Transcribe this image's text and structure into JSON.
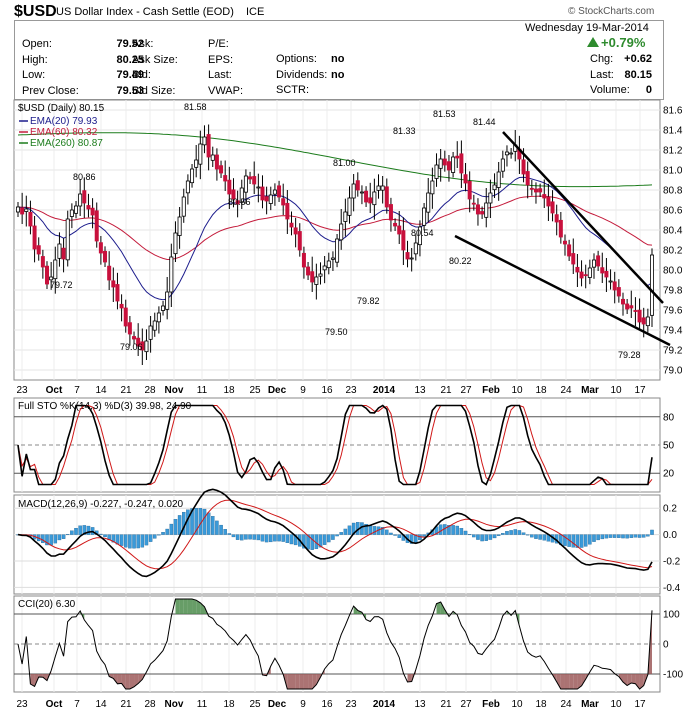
{
  "header": {
    "symbol": "$USD",
    "name": "US Dollar Index - Cash Settle (EOD)",
    "exchange": "ICE",
    "watermark": "© StockCharts.com",
    "date": "Wednesday 19-Mar-2014",
    "change_pct": "+0.79%",
    "up_color": "#2e8b2e"
  },
  "quote": {
    "col1": [
      {
        "label": "Open:",
        "value": "79.52"
      },
      {
        "label": "High:",
        "value": "80.25"
      },
      {
        "label": "Low:",
        "value": "79.49"
      },
      {
        "label": "Prev Close:",
        "value": "79.53"
      }
    ],
    "col2": [
      {
        "label": "Ask:",
        "value": ""
      },
      {
        "label": "Ask Size:",
        "value": ""
      },
      {
        "label": "Bid:",
        "value": ""
      },
      {
        "label": "Bid Size:",
        "value": ""
      }
    ],
    "col3": [
      {
        "label": "P/E:",
        "value": ""
      },
      {
        "label": "EPS:",
        "value": ""
      },
      {
        "label": "Last:",
        "value": ""
      },
      {
        "label": "VWAP:",
        "value": ""
      }
    ],
    "col4": [
      {
        "label": "Options:",
        "value": "no"
      },
      {
        "label": "Dividends:",
        "value": "no"
      },
      {
        "label": "SCTR:",
        "value": ""
      }
    ],
    "col5": [
      {
        "label": "Chg:",
        "value": "+0.62"
      },
      {
        "label": "Last:",
        "value": "80.15"
      },
      {
        "label": "Volume:",
        "value": "0"
      }
    ]
  },
  "chart_data": [
    {
      "type": "candlestick",
      "title": "$USD (Daily) 80.15",
      "legend": [
        {
          "name": "EMA(20) 79.93",
          "color": "#1c1c8c"
        },
        {
          "name": "EMA(60) 80.32",
          "color": "#c41c3c"
        },
        {
          "name": "EMA(260) 80.87",
          "color": "#1c7c1c"
        }
      ],
      "ylim": [
        78.9,
        81.7
      ],
      "y_ticks": [
        "81.6",
        "81.4",
        "81.2",
        "81.0",
        "80.8",
        "80.6",
        "80.4",
        "80.2",
        "80.0",
        "79.8",
        "79.6",
        "79.4",
        "79.2",
        "79.0"
      ],
      "x_ticks": [
        "23",
        "Oct",
        "7",
        "14",
        "21",
        "28",
        "Nov",
        "11",
        "18",
        "25",
        "Dec",
        "9",
        "16",
        "23",
        "2014",
        "13",
        "21",
        "27",
        "Feb",
        "10",
        "18",
        "24",
        "Mar",
        "10",
        "17"
      ],
      "annotations": [
        "81.58",
        "80.86",
        "79.72",
        "79.06",
        "80.56",
        "81.00",
        "79.50",
        "79.82",
        "81.33",
        "81.53",
        "80.54",
        "81.44",
        "80.22",
        "79.28"
      ],
      "closes": [
        80.63,
        80.56,
        80.61,
        80.44,
        80.21,
        80.16,
        80.03,
        79.86,
        79.93,
        80.1,
        80.26,
        80.11,
        80.51,
        80.6,
        80.64,
        80.76,
        80.67,
        80.61,
        80.55,
        80.29,
        80.17,
        80.08,
        79.9,
        79.83,
        79.69,
        79.62,
        79.44,
        79.36,
        79.31,
        79.24,
        79.2,
        79.29,
        79.44,
        79.49,
        79.57,
        79.64,
        79.78,
        80.13,
        80.37,
        80.53,
        80.73,
        80.89,
        81.01,
        81.1,
        81.26,
        81.33,
        81.13,
        81.15,
        81.01,
        80.97,
        80.89,
        80.76,
        80.71,
        80.66,
        80.82,
        80.94,
        80.91,
        80.86,
        80.83,
        80.7,
        80.69,
        80.75,
        80.8,
        80.73,
        80.65,
        80.51,
        80.43,
        80.36,
        80.2,
        80.03,
        79.95,
        79.88,
        79.93,
        79.96,
        80.04,
        80.09,
        80.12,
        80.31,
        80.46,
        80.58,
        80.72,
        80.86,
        80.8,
        80.78,
        80.68,
        80.67,
        80.78,
        80.84,
        80.84,
        80.63,
        80.5,
        80.44,
        80.36,
        80.2,
        80.11,
        80.12,
        80.27,
        80.43,
        80.62,
        80.77,
        80.89,
        81.05,
        81.11,
        81.05,
        81.0,
        81.13,
        81.12,
        80.97,
        80.87,
        80.71,
        80.66,
        80.56,
        80.56,
        80.67,
        80.77,
        80.85,
        80.98,
        81.11,
        81.18,
        81.17,
        81.25,
        81.11,
        80.96,
        80.85,
        80.81,
        80.78,
        80.78,
        80.72,
        80.64,
        80.57,
        80.48,
        80.33,
        80.26,
        80.14,
        80.06,
        79.98,
        79.92,
        79.95,
        80.02,
        80.1,
        80.04,
        79.97,
        79.93,
        79.89,
        79.8,
        79.74,
        79.66,
        79.61,
        79.62,
        79.59,
        79.48,
        79.46,
        79.53,
        80.15
      ]
    },
    {
      "type": "line",
      "title": "Full STO %K(14,3) %D(3) 39.98, 24.90",
      "series": [
        {
          "name": "%K"
        },
        {
          "name": "%D"
        }
      ],
      "ylim": [
        0,
        100
      ],
      "y_ticks": [
        "80",
        "50",
        "20"
      ]
    },
    {
      "type": "line",
      "title": "MACD(12,26,9) -0.227, -0.247, 0.020",
      "series": [
        {
          "name": "MACD"
        },
        {
          "name": "Signal"
        },
        {
          "name": "Histogram"
        }
      ],
      "ylim": [
        -0.45,
        0.3
      ],
      "y_ticks": [
        "0.2",
        "0.0",
        "-0.2",
        "-0.4"
      ]
    },
    {
      "type": "line",
      "title": "CCI(20) 6.30",
      "ylim": [
        -160,
        160
      ],
      "y_ticks": [
        "100",
        "0",
        "-100"
      ],
      "x_ticks": [
        "23",
        "Oct",
        "7",
        "14",
        "21",
        "28",
        "Nov",
        "11",
        "18",
        "25",
        "Dec",
        "9",
        "16",
        "23",
        "2014",
        "13",
        "21",
        "27",
        "Feb",
        "10",
        "18",
        "24",
        "Mar",
        "10",
        "17"
      ]
    }
  ]
}
